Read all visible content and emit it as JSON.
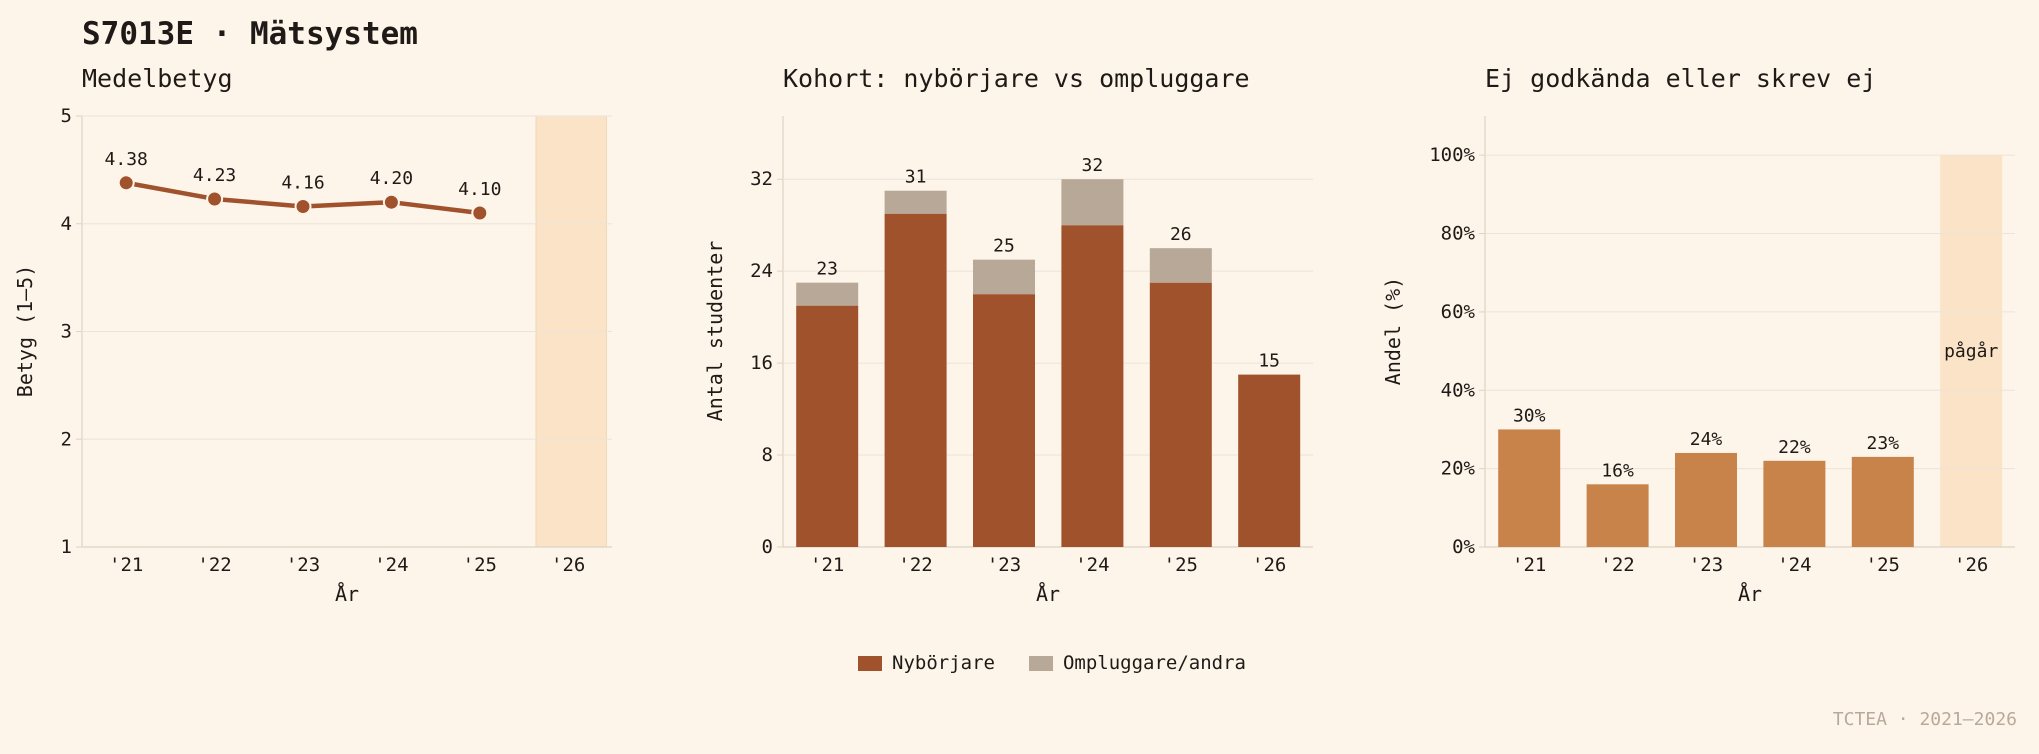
{
  "header": {
    "title": "S7013E · Mätsystem"
  },
  "footer": {
    "text": "TCTEA · 2021–2026"
  },
  "colors": {
    "background": "#fdf5ea",
    "line": "#a0522d",
    "newcomers": "#a0522d",
    "repeaters": "#b8a898",
    "fail_bars": "#c8834a",
    "ongoing_band": "#fbe3c8",
    "grid": "#ece4d8"
  },
  "legend": {
    "items": [
      {
        "label": "Nybörjare",
        "color": "#a0522d"
      },
      {
        "label": "Ompluggare/andra",
        "color": "#b8a898"
      }
    ]
  },
  "chart_data": [
    {
      "type": "line",
      "title": "Medelbetyg",
      "xlabel": "År",
      "ylabel": "Betyg (1–5)",
      "categories": [
        "'21",
        "'22",
        "'23",
        "'24",
        "'25",
        "'26"
      ],
      "values": [
        4.38,
        4.23,
        4.16,
        4.2,
        4.1,
        null
      ],
      "value_labels": [
        "4.38",
        "4.23",
        "4.16",
        "4.20",
        "4.10",
        ""
      ],
      "ylim": [
        1,
        5
      ],
      "yticks": [
        "1",
        "2",
        "3",
        "4",
        "5"
      ],
      "ytick_values": [
        1,
        2,
        3,
        4,
        5
      ],
      "highlight_category": "'26",
      "grid": true
    },
    {
      "type": "bar",
      "stacked": true,
      "title": "Kohort: nybörjare vs ompluggare",
      "xlabel": "År",
      "ylabel": "Antal studenter",
      "categories": [
        "'21",
        "'22",
        "'23",
        "'24",
        "'25",
        "'26"
      ],
      "series": [
        {
          "name": "Nybörjare",
          "values": [
            21,
            29,
            22,
            28,
            23,
            15
          ]
        },
        {
          "name": "Ompluggare/andra",
          "values": [
            2,
            2,
            3,
            4,
            3,
            0
          ]
        }
      ],
      "totals": [
        "23",
        "31",
        "25",
        "32",
        "26",
        "15"
      ],
      "ylim": [
        0,
        37.5
      ],
      "yticks": [
        "0",
        "8",
        "16",
        "24",
        "32"
      ],
      "ytick_values": [
        0,
        8,
        16,
        24,
        32
      ],
      "legend_position": "bottom-center",
      "grid": true
    },
    {
      "type": "bar",
      "title": "Ej godkända eller skrev ej",
      "xlabel": "År",
      "ylabel": "Andel (%)",
      "categories": [
        "'21",
        "'22",
        "'23",
        "'24",
        "'25",
        "'26"
      ],
      "values": [
        30,
        16,
        24,
        22,
        23,
        null
      ],
      "value_labels": [
        "30%",
        "16%",
        "24%",
        "22%",
        "23%",
        ""
      ],
      "ylim": [
        0,
        110
      ],
      "yticks": [
        "0%",
        "20%",
        "40%",
        "60%",
        "80%",
        "100%"
      ],
      "ytick_values": [
        0,
        20,
        40,
        60,
        80,
        100
      ],
      "highlight_category": "'26",
      "highlight_label": "pågår",
      "grid": true
    }
  ]
}
